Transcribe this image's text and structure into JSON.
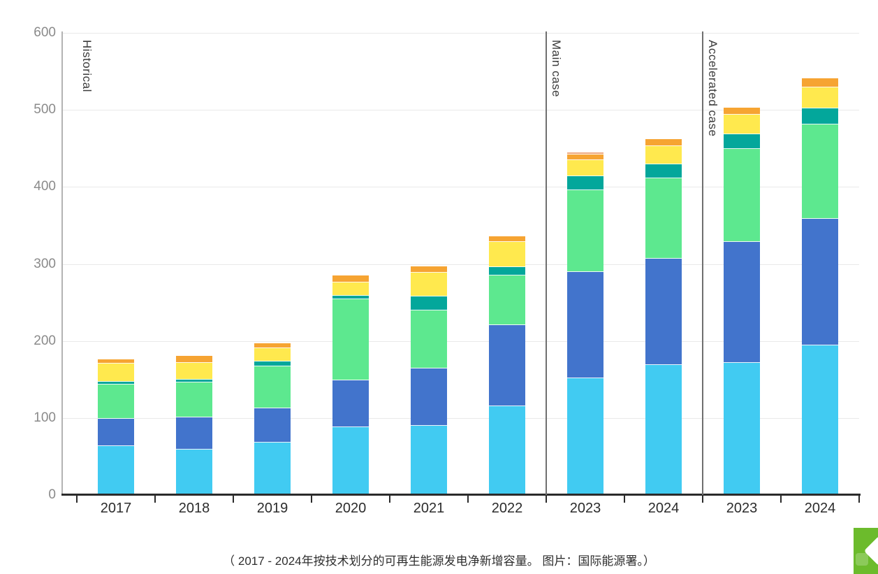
{
  "caption": "（ 2017 - 2024年按技术划分的可再生能源发电净新增容量。 图片：国际能源署。）",
  "corner_logo": {
    "color": "#6cbb2c"
  },
  "chart_data": {
    "type": "bar",
    "stacked": true,
    "title": "",
    "xlabel": "",
    "ylabel": "",
    "ylim": [
      0,
      600
    ],
    "yticks": [
      0,
      100,
      200,
      300,
      400,
      500,
      600
    ],
    "grid": true,
    "legend_position": "none-visible",
    "categories": [
      "2017",
      "2018",
      "2019",
      "2020",
      "2021",
      "2022",
      "2023",
      "2024",
      "2023",
      "2024"
    ],
    "sections": [
      {
        "label": "Historical",
        "span": 6
      },
      {
        "label": "Main case",
        "span": 2
      },
      {
        "label": "Accelerated case",
        "span": 2
      }
    ],
    "series": [
      {
        "name": "light-blue-segment",
        "color": "#41cbf2",
        "values": [
          64,
          59,
          68,
          88,
          90,
          115,
          152,
          169,
          172,
          194
        ]
      },
      {
        "name": "blue-segment",
        "color": "#4274cc",
        "values": [
          35,
          42,
          45,
          61,
          74,
          106,
          138,
          138,
          157,
          165
        ]
      },
      {
        "name": "green-segment",
        "color": "#5de88f",
        "values": [
          44,
          45,
          54,
          105,
          76,
          64,
          106,
          104,
          120,
          122
        ]
      },
      {
        "name": "teal-segment",
        "color": "#03a79b",
        "values": [
          4,
          4,
          6,
          5,
          18,
          11,
          18,
          18,
          19,
          21
        ]
      },
      {
        "name": "yellow-segment",
        "color": "#ffe94e",
        "values": [
          24,
          22,
          18,
          17,
          31,
          33,
          21,
          24,
          26,
          27
        ]
      },
      {
        "name": "orange-segment",
        "color": "#f6a432",
        "values": [
          5,
          9,
          6,
          9,
          8,
          7,
          7,
          9,
          9,
          12
        ]
      },
      {
        "name": "salmon-segment",
        "color": "#efa97e",
        "values": [
          0,
          0,
          0,
          0,
          0,
          0,
          3,
          0,
          0,
          0
        ]
      }
    ],
    "totals": [
      176,
      181,
      197,
      285,
      297,
      336,
      445,
      462,
      503,
      541
    ]
  }
}
